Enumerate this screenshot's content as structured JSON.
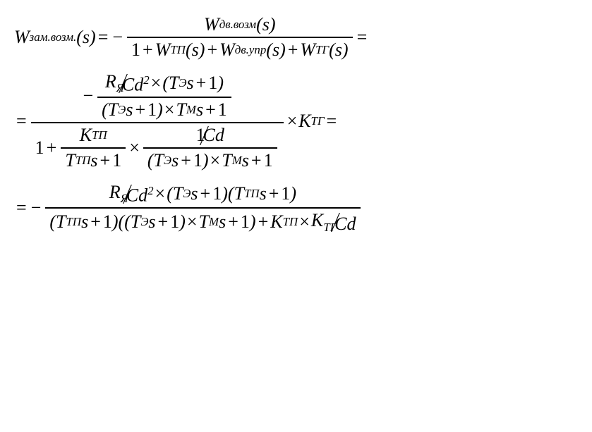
{
  "background_color": "#ffffff",
  "text_color": "#000000",
  "font_family": "Times New Roman",
  "font_style": "italic",
  "font_size_pt": 20,
  "symbols": {
    "W": "W",
    "s": "s",
    "K": "K",
    "KCyr": "К",
    "T": "T",
    "R": "R",
    "C": "C",
    "d": "d",
    "eq": "=",
    "minus": "−",
    "plus": "+",
    "times": "×",
    "one": "1",
    "two": "2",
    "lparen": "(",
    "rparen": ")"
  },
  "subscripts": {
    "zam_vozm": "зам.возм.",
    "dv_vozm": "дв.возм",
    "dv_upr": "дв.упр",
    "TP": "ТП",
    "TG": "ТГ",
    "Ya": "Я",
    "E": "Э",
    "M": "М"
  }
}
